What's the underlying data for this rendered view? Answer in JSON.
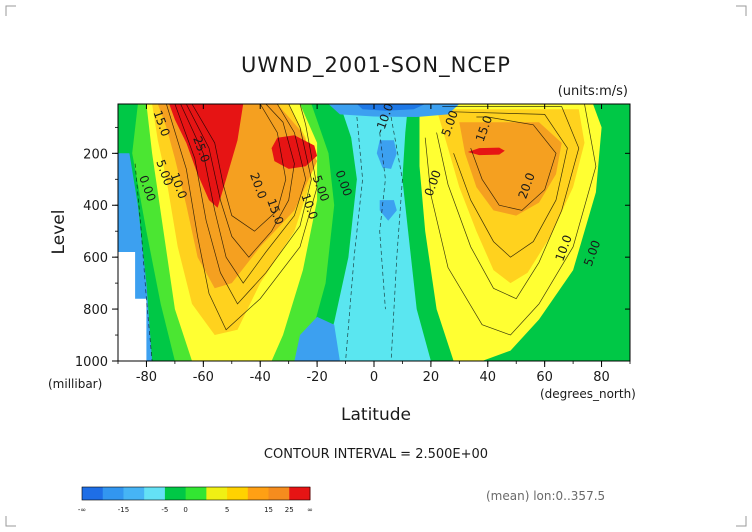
{
  "chart_data": {
    "type": "heatmap",
    "title": "UWND_2001-SON_NCEP",
    "units": "(units:m/s)",
    "xlabel": "Latitude",
    "x_unit": "(degrees_north)",
    "ylabel": "Level",
    "y_unit": "(millibar)",
    "xlim": [
      -90,
      90
    ],
    "ylim": [
      1000,
      10
    ],
    "x_ticks": [
      "-80",
      "-60",
      "-40",
      "-20",
      "0",
      "20",
      "40",
      "60",
      "80"
    ],
    "x_tick_values": [
      -80,
      -60,
      -40,
      -20,
      0,
      20,
      40,
      60,
      80
    ],
    "y_ticks": [
      "200",
      "400",
      "600",
      "800",
      "1000"
    ],
    "y_tick_values": [
      200,
      400,
      600,
      800,
      1000
    ],
    "contour_interval": "CONTOUR INTERVAL = 2.500E+00",
    "footer": "(mean) lon:0..357.5",
    "contour_labels": [
      {
        "text": "15.0",
        "lat": -76,
        "lev": 90
      },
      {
        "text": "25.0",
        "lat": -62,
        "lev": 190
      },
      {
        "text": "10.0",
        "lat": -70,
        "lev": 330
      },
      {
        "text": "5.00",
        "lat": -75,
        "lev": 280
      },
      {
        "text": "0.00",
        "lat": -81,
        "lev": 340
      },
      {
        "text": "20.0",
        "lat": -42,
        "lev": 330
      },
      {
        "text": "15.0",
        "lat": -36,
        "lev": 430
      },
      {
        "text": "10.0",
        "lat": -24,
        "lev": 410
      },
      {
        "text": "5.00",
        "lat": -20,
        "lev": 340
      },
      {
        "text": "0.00",
        "lat": -12,
        "lev": 320
      },
      {
        "text": "-10.0",
        "lat": 5,
        "lev": 70
      },
      {
        "text": "0.00",
        "lat": 22,
        "lev": 320
      },
      {
        "text": "5.00",
        "lat": 28,
        "lev": 90
      },
      {
        "text": "15.0",
        "lat": 40,
        "lev": 110
      },
      {
        "text": "20.0",
        "lat": 55,
        "lev": 330
      },
      {
        "text": "10.0",
        "lat": 68,
        "lev": 570
      },
      {
        "text": "5.00",
        "lat": 78,
        "lev": 590
      }
    ],
    "colorbar": {
      "boundaries": [
        "-∞",
        "-15",
        "-5",
        "0",
        "5",
        "15",
        "25",
        "∞"
      ],
      "colors": [
        "#1e6ee6",
        "#3296f0",
        "#46b4f5",
        "#64e1f5",
        "#00c846",
        "#32e632",
        "#f0f014",
        "#ffd200",
        "#ffa014",
        "#f58c1e",
        "#e61414"
      ]
    },
    "palette": {
      "neg_dark": "#1e78e6",
      "neg": "#3ca0f0",
      "zero": "#5ae6f0",
      "g1": "#00c846",
      "g2": "#4be632",
      "y1": "#ffff32",
      "y2": "#ffd21e",
      "o1": "#f5a020",
      "r1": "#e61414",
      "white": "#ffffff"
    }
  }
}
